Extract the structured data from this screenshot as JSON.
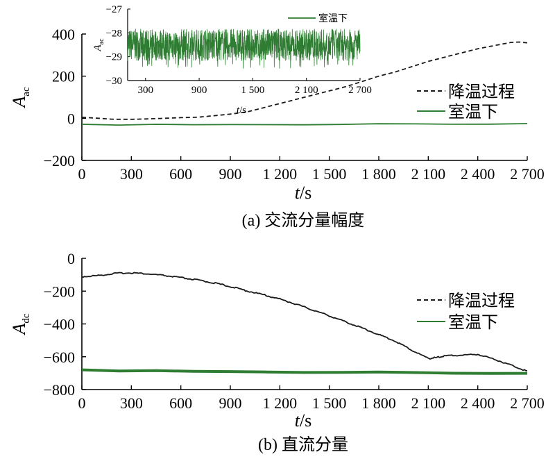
{
  "chart_data": [
    {
      "id": "a",
      "type": "line",
      "caption": "(a) 交流分量幅度",
      "ylabel_main": "A",
      "ylabel_sub": "ac",
      "xlabel_main": "t",
      "xlabel_unit": "/s",
      "xlim": [
        0,
        2700
      ],
      "ylim": [
        -200,
        400
      ],
      "xticks": [
        0,
        300,
        600,
        900,
        1200,
        1500,
        1800,
        2100,
        2400,
        2700
      ],
      "xtick_labels": [
        "0",
        "300",
        "600",
        "900",
        "1 200",
        "1 500",
        "1 800",
        "2 100",
        "2 400",
        "2 700"
      ],
      "yticks": [
        -200,
        0,
        200,
        400
      ],
      "ytick_labels": [
        "−200",
        "0",
        "200",
        "400"
      ],
      "legend_position": "right",
      "series": [
        {
          "name": "降温过程",
          "style": "dashed",
          "color": "#1a1a1a",
          "x": [
            0,
            100,
            200,
            300,
            400,
            500,
            600,
            700,
            800,
            900,
            1000,
            1100,
            1200,
            1300,
            1400,
            1500,
            1600,
            1700,
            1800,
            1900,
            2000,
            2100,
            2200,
            2300,
            2400,
            2500,
            2600,
            2650,
            2700
          ],
          "y": [
            5,
            0,
            -5,
            -5,
            -3,
            0,
            3,
            5,
            12,
            20,
            30,
            50,
            70,
            90,
            110,
            130,
            150,
            175,
            200,
            220,
            245,
            270,
            290,
            310,
            330,
            345,
            360,
            362,
            358
          ]
        },
        {
          "name": "室温下",
          "style": "solid",
          "color": "#2e7d32",
          "x": [
            0,
            2700
          ],
          "y": [
            -28.5,
            -28.5
          ]
        }
      ],
      "inset": {
        "ylabel_main": "A",
        "ylabel_sub": "ac",
        "xlabel_main": "t",
        "xlabel_unit": "/s",
        "xlim": [
          100,
          2700
        ],
        "ylim": [
          -30,
          -27
        ],
        "xticks": [
          300,
          900,
          1500,
          2100,
          2700
        ],
        "xtick_labels": [
          "300",
          "900",
          "1 500",
          "2 100",
          "2 700"
        ],
        "yticks": [
          -27,
          -28,
          -29,
          -30
        ],
        "ytick_labels": [
          "−27",
          "−28",
          "−29",
          "−30"
        ],
        "series_name": "室温下",
        "color": "#2e7d32",
        "center": -28.5,
        "spread": [
          -29.3,
          -27.8
        ]
      }
    },
    {
      "id": "b",
      "type": "line",
      "caption": "(b) 直流分量",
      "ylabel_main": "A",
      "ylabel_sub": "dc",
      "xlabel_main": "t",
      "xlabel_unit": "/s",
      "xlim": [
        0,
        2700
      ],
      "ylim": [
        -800,
        0
      ],
      "xticks": [
        0,
        300,
        600,
        900,
        1200,
        1500,
        1800,
        2100,
        2400,
        2700
      ],
      "xtick_labels": [
        "0",
        "300",
        "600",
        "900",
        "1 200",
        "1 500",
        "1 800",
        "2 100",
        "2 400",
        "2 700"
      ],
      "yticks": [
        -800,
        -600,
        -400,
        -200,
        0
      ],
      "ytick_labels": [
        "−800",
        "−600",
        "−400",
        "−200",
        "0"
      ],
      "legend_position": "right",
      "series": [
        {
          "name": "降温过程",
          "style": "solid",
          "color": "#1a1a1a",
          "x": [
            0,
            100,
            200,
            300,
            400,
            500,
            600,
            700,
            800,
            900,
            1000,
            1100,
            1200,
            1300,
            1400,
            1500,
            1600,
            1700,
            1800,
            1900,
            2000,
            2100,
            2150,
            2200,
            2300,
            2400,
            2500,
            2600,
            2700
          ],
          "y": [
            -112,
            -105,
            -92,
            -88,
            -95,
            -105,
            -118,
            -132,
            -150,
            -172,
            -198,
            -222,
            -248,
            -280,
            -315,
            -350,
            -388,
            -425,
            -465,
            -505,
            -560,
            -610,
            -605,
            -595,
            -590,
            -585,
            -615,
            -650,
            -688
          ]
        },
        {
          "name": "室温下",
          "style": "solid",
          "color": "#2e7d32",
          "x": [
            0,
            2700
          ],
          "y": [
            -680,
            -705
          ]
        }
      ]
    }
  ]
}
